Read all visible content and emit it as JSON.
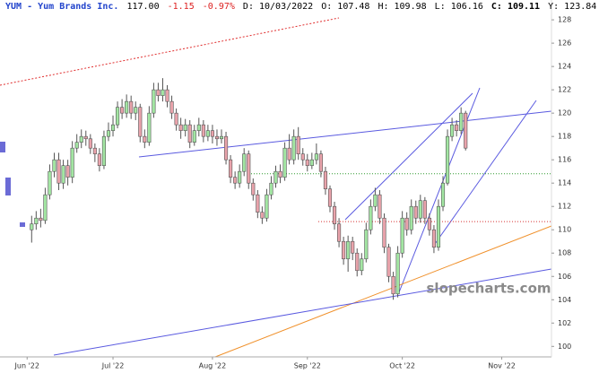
{
  "header": {
    "symbol": "YUM - Yum Brands Inc.",
    "last": "117.00",
    "change": "-1.15",
    "change_pct": "-0.97%",
    "date": "D: 10/03/2022",
    "open": "O: 107.48",
    "high": "H: 109.98",
    "low": "L: 106.16",
    "close": "C: 109.11",
    "year": "Y: 123.84"
  },
  "watermark": "slopecharts.com",
  "chart_data": {
    "type": "candlestick",
    "open": [
      110,
      110.5,
      111,
      110.8,
      113,
      115,
      116,
      114,
      115.5,
      114.5,
      117,
      117.5,
      118,
      117.8,
      117,
      116.5,
      115.5,
      118,
      118.5,
      119,
      120.5,
      120,
      121,
      120,
      120.5,
      118,
      117.5,
      120,
      122,
      121.5,
      122,
      121,
      120,
      119,
      118.5,
      119,
      117.5,
      118.5,
      119,
      118,
      118.5,
      118,
      117.8,
      118,
      116,
      114.5,
      114,
      115,
      116.5,
      114,
      113,
      111.5,
      111,
      113,
      114,
      115,
      114.5,
      117,
      116,
      118,
      116.5,
      116,
      115.5,
      116,
      116.5,
      115,
      113.5,
      112,
      110.5,
      109,
      107.5,
      109,
      108,
      106.5,
      107.5,
      110,
      112,
      113,
      111,
      108.5,
      106,
      104.5,
      108,
      111,
      110,
      112,
      111,
      112.5,
      111,
      110,
      108.5,
      112,
      114,
      118,
      119,
      118.5,
      120
    ],
    "high": [
      111.2,
      111.6,
      111.8,
      113.6,
      115.6,
      116.6,
      116.6,
      116,
      116,
      117.6,
      118.2,
      118.6,
      118.5,
      118.2,
      117.4,
      117,
      118.5,
      119.2,
      119.8,
      121,
      121.2,
      121.6,
      121.5,
      121,
      120.8,
      118.6,
      120.6,
      122.6,
      122.6,
      123,
      122.4,
      121.5,
      120.4,
      119.6,
      119.5,
      119.4,
      119,
      119.6,
      119.4,
      119,
      119,
      118.6,
      118.6,
      118.4,
      116.4,
      115,
      115.6,
      117,
      116.8,
      114.4,
      113.4,
      112,
      113.5,
      114.6,
      115.5,
      115.6,
      117.5,
      118.2,
      118.6,
      118.8,
      117,
      116.5,
      116.6,
      117.4,
      116.8,
      115.4,
      113.8,
      112.4,
      111,
      109.4,
      109.5,
      109.4,
      108.4,
      108,
      110.6,
      112.6,
      113.6,
      113.4,
      111.4,
      108.8,
      106.4,
      108.6,
      111.6,
      111.5,
      112.6,
      112.5,
      113,
      112.8,
      111.4,
      110.4,
      112.6,
      114.6,
      118.6,
      119.6,
      119.4,
      120.5,
      120.2
    ],
    "low": [
      108.9,
      110,
      110.2,
      110.5,
      112.6,
      114.5,
      113.4,
      113.5,
      113.8,
      114,
      116.6,
      117,
      117.2,
      116.5,
      115.8,
      115,
      115.2,
      117.6,
      118,
      118.7,
      119.5,
      119.6,
      119.5,
      119.4,
      117.5,
      117,
      117.2,
      119.6,
      121,
      121,
      120.5,
      119.5,
      118.5,
      117.8,
      118,
      117,
      117.2,
      118,
      117.5,
      117.6,
      117.4,
      117.2,
      117.4,
      115.6,
      114,
      113.5,
      113.6,
      114.6,
      113.5,
      112.5,
      111,
      110.5,
      110.7,
      112.6,
      113.6,
      114,
      114.2,
      115.6,
      115.6,
      116,
      115.5,
      115,
      115.2,
      115.6,
      114.5,
      113,
      111.5,
      110,
      108.5,
      107,
      106.4,
      107.4,
      106,
      106.1,
      107.2,
      109.6,
      111.6,
      110.5,
      108,
      105.5,
      104,
      104.2,
      107.6,
      109.5,
      109.6,
      110.5,
      110.6,
      110.5,
      109.5,
      108,
      108.2,
      111.6,
      113.8,
      117.6,
      118,
      118.2,
      116.8
    ],
    "close": [
      110.5,
      111,
      110.8,
      113,
      115,
      116,
      114,
      115.5,
      114.5,
      117,
      117.5,
      118,
      117.8,
      117,
      116.5,
      115.5,
      118,
      118.5,
      119,
      120.5,
      120,
      121,
      120,
      120.5,
      118,
      117.5,
      120,
      122,
      121.5,
      122,
      121,
      120,
      119,
      118.5,
      119,
      117.5,
      118.5,
      119,
      118,
      118.5,
      118,
      117.8,
      118,
      116,
      114.5,
      114,
      115,
      116.5,
      114,
      113,
      111.5,
      111,
      113,
      114,
      115,
      114.5,
      117,
      116,
      118,
      116.5,
      116,
      115.5,
      116,
      116.5,
      115,
      113.5,
      112,
      110.5,
      109,
      107.5,
      109,
      108,
      106.5,
      107.5,
      110,
      112,
      113,
      111,
      108.5,
      106,
      104.5,
      108,
      111,
      110,
      112,
      111,
      112.5,
      111,
      110,
      108.5,
      112,
      114,
      118,
      119,
      118.5,
      120,
      117
    ],
    "up_color": "#a3e6a3",
    "down_color": "#e9a3ab",
    "xlim": [
      -7,
      115
    ],
    "xticks": [
      {
        "value": -1,
        "label": "Jun '22"
      },
      {
        "value": 18,
        "label": "Jul '22"
      },
      {
        "value": 40,
        "label": "Aug '22"
      },
      {
        "value": 61,
        "label": "Sep '22"
      },
      {
        "value": 82,
        "label": "Oct '22"
      },
      {
        "value": 104,
        "label": "Nov '22"
      }
    ],
    "ylim": [
      99.1,
      129.7
    ],
    "yticks": [
      100,
      102,
      104,
      106,
      108,
      110,
      112,
      114,
      116,
      118,
      120,
      122,
      124,
      126,
      128
    ],
    "levels": [
      {
        "value": 114.8,
        "color": "#2e9a2e"
      },
      {
        "value": 110.7,
        "color": "#d63333"
      }
    ]
  }
}
